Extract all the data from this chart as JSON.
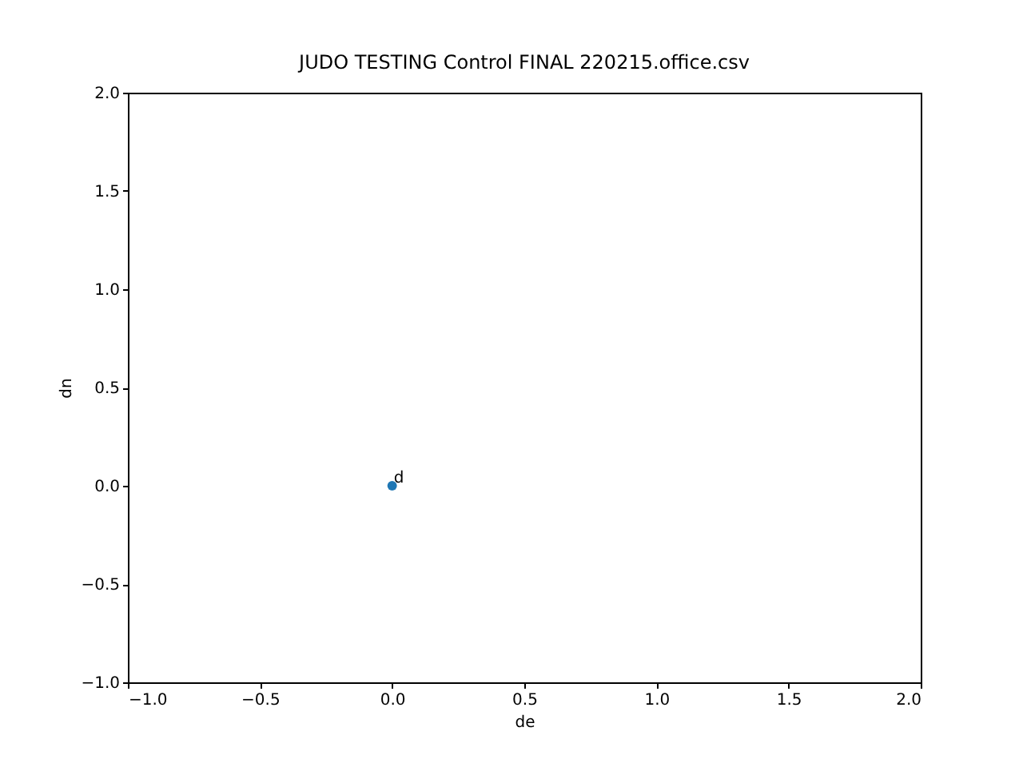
{
  "chart_data": {
    "type": "scatter",
    "title": "JUDO TESTING Control FINAL 220215.office.csv",
    "xlabel": "de",
    "ylabel": "dn",
    "x": [
      0
    ],
    "series": [
      {
        "color": "#1f77b4",
        "values": [
          0
        ]
      }
    ],
    "annotations": [
      {
        "text": "d",
        "x": 0,
        "y": 0
      }
    ],
    "xlim": [
      -1,
      2
    ],
    "ylim": [
      -1,
      2
    ],
    "xticks": [
      {
        "value": -1,
        "label": "−1.0"
      },
      {
        "value": -0.5,
        "label": "−0.5"
      },
      {
        "value": 0,
        "label": "0.0"
      },
      {
        "value": 0.5,
        "label": "0.5"
      },
      {
        "value": 1,
        "label": "1.0"
      },
      {
        "value": 1.5,
        "label": "1.5"
      },
      {
        "value": 2,
        "label": "2.0"
      }
    ],
    "yticks": [
      {
        "value": -1,
        "label": "−1.0"
      },
      {
        "value": -0.5,
        "label": "−0.5"
      },
      {
        "value": 0,
        "label": "0.0"
      },
      {
        "value": 0.5,
        "label": "0.5"
      },
      {
        "value": 1,
        "label": "1.0"
      },
      {
        "value": 1.5,
        "label": "1.5"
      },
      {
        "value": 2,
        "label": "2.0"
      }
    ],
    "marker": "circle",
    "grid": false
  }
}
